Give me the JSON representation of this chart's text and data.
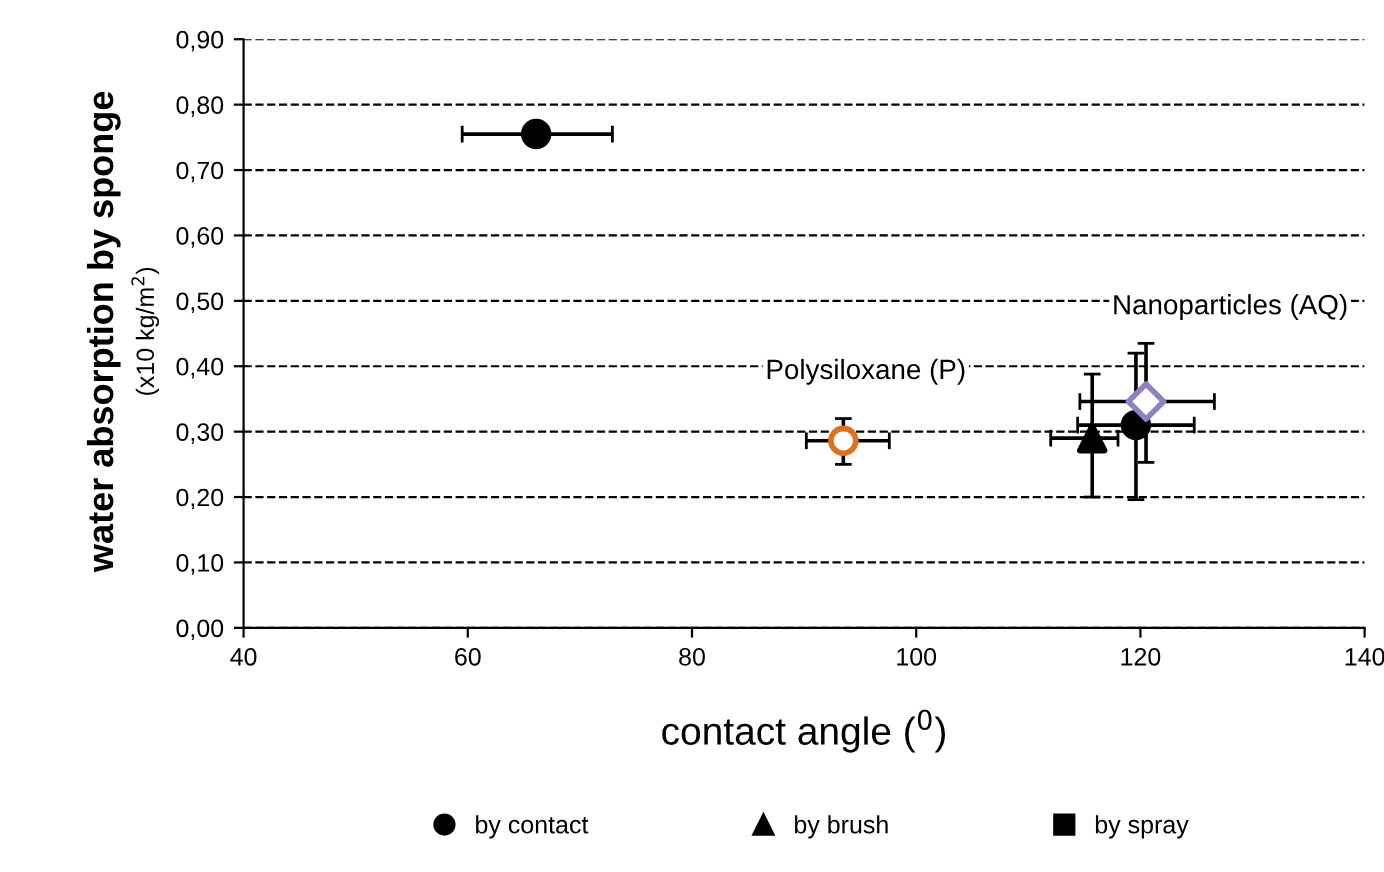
{
  "chart_data": {
    "type": "scatter",
    "xlabel": "contact angle ($^{0}$)",
    "ylabel": "water absorption by sponge\n(x10 kg/m$^{2}$)",
    "xlim": [
      40,
      140
    ],
    "xticks": [
      40,
      60,
      80,
      100,
      120,
      140
    ],
    "ylim": [
      0,
      0.9
    ],
    "yticks": [
      {
        "value": 0,
        "label": "0,00"
      },
      {
        "value": 0.1,
        "label": "0,10"
      },
      {
        "value": 0.2,
        "label": "0,20"
      },
      {
        "value": 0.3,
        "label": "0,30"
      },
      {
        "value": 0.4,
        "label": "0,40"
      },
      {
        "value": 0.5,
        "label": "0,50"
      },
      {
        "value": 0.6,
        "label": "0,60"
      },
      {
        "value": 0.7,
        "label": "0,70"
      },
      {
        "value": 0.8,
        "label": "0,80"
      },
      {
        "value": 0.9,
        "label": "0,90"
      }
    ],
    "grid": "y",
    "legend": "bottom",
    "series": [
      {
        "name": "by contact",
        "color": "#000000",
        "marker": "circle",
        "x": [
          66.1,
          119.6
        ],
        "values": [
          0.755,
          0.31
        ],
        "errors": [
          null,
          [
            0.196,
            0.42
          ]
        ],
        "xerrors": [
          [
            59.5,
            72.9
          ],
          [
            114.4,
            124.8
          ]
        ]
      },
      {
        "name": "by brush",
        "color": "#000000",
        "marker": "triangle",
        "x": [
          115.7
        ],
        "values": [
          0.29
        ],
        "errors": [
          [
            0.2,
            0.388
          ]
        ],
        "xerrors": [
          [
            112,
            118
          ]
        ]
      },
      {
        "name": "by spray",
        "color": "#000000",
        "marker": "square"
      },
      {
        "color": "#e07020",
        "marker": "circle",
        "x": [
          93.5
        ],
        "values": [
          0.286
        ],
        "errors": [
          [
            0.25,
            0.32
          ]
        ],
        "xerrors": [
          [
            90.2,
            97.6
          ]
        ]
      },
      {
        "color": "#9080c0",
        "marker": "diamond",
        "x": [
          120.5
        ],
        "values": [
          0.346
        ],
        "errors": [
          [
            0.253,
            0.435
          ]
        ],
        "xerrors": [
          [
            114.6,
            126.6
          ]
        ]
      }
    ],
    "annotations": [
      "Polysiloxane (P)",
      "Nanoparticles (AQ)"
    ]
  }
}
